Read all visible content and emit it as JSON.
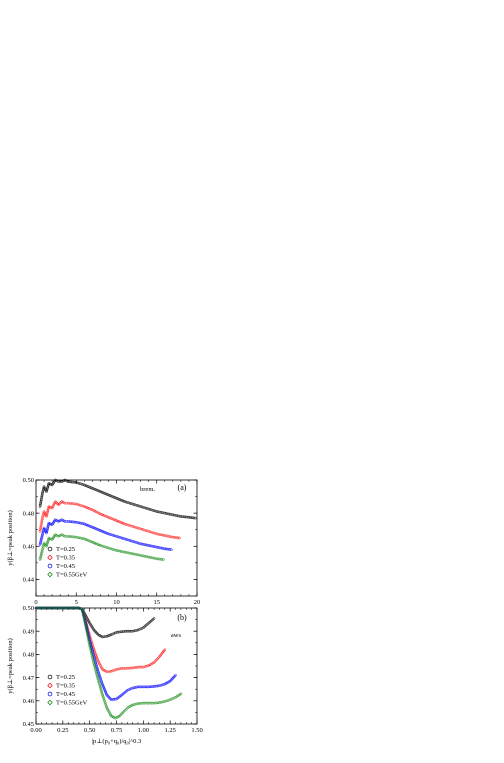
{
  "chart_data": [
    {
      "type": "scatter",
      "panel_label": "(a)",
      "annotation": "brem.",
      "xlabel": "",
      "ylabel": "y(β⊥=peak position)",
      "xlim": [
        0,
        20
      ],
      "ylim": [
        0.43,
        0.5
      ],
      "xticks": [
        "0",
        "5",
        "10",
        "15",
        "20"
      ],
      "yticks": [
        "0.44",
        "0.46",
        "0.48",
        "0.50"
      ],
      "legend_position": "bottom-left",
      "series": [
        {
          "name": "T=0.25",
          "color": "#000000",
          "marker": "circle",
          "points": [
            [
              0.5,
              0.484
            ],
            [
              0.8,
              0.492
            ],
            [
              1.0,
              0.496
            ],
            [
              1.3,
              0.493
            ],
            [
              1.6,
              0.498
            ],
            [
              2.0,
              0.497
            ],
            [
              2.4,
              0.5
            ],
            [
              2.8,
              0.499
            ],
            [
              3.2,
              0.499
            ],
            [
              3.6,
              0.5
            ],
            [
              4.0,
              0.499
            ],
            [
              5,
              0.4985
            ],
            [
              6,
              0.497
            ],
            [
              7,
              0.495
            ],
            [
              8,
              0.493
            ],
            [
              9,
              0.491
            ],
            [
              10,
              0.489
            ],
            [
              11,
              0.487
            ],
            [
              12,
              0.4855
            ],
            [
              13,
              0.484
            ],
            [
              14,
              0.4825
            ],
            [
              15,
              0.481
            ],
            [
              16,
              0.48
            ],
            [
              17,
              0.479
            ],
            [
              18,
              0.478
            ],
            [
              19,
              0.4775
            ],
            [
              19.8,
              0.477
            ]
          ]
        },
        {
          "name": "T=0.35",
          "color": "#ff0000",
          "marker": "diamond",
          "points": [
            [
              0.5,
              0.469
            ],
            [
              0.8,
              0.477
            ],
            [
              1.0,
              0.481
            ],
            [
              1.3,
              0.478
            ],
            [
              1.6,
              0.484
            ],
            [
              2.0,
              0.483
            ],
            [
              2.4,
              0.487
            ],
            [
              2.8,
              0.485
            ],
            [
              3.2,
              0.487
            ],
            [
              3.6,
              0.486
            ],
            [
              4.0,
              0.486
            ],
            [
              5,
              0.4855
            ],
            [
              6,
              0.484
            ],
            [
              7,
              0.482
            ],
            [
              8,
              0.4795
            ],
            [
              9,
              0.4775
            ],
            [
              10,
              0.4755
            ],
            [
              11,
              0.4735
            ],
            [
              12,
              0.472
            ],
            [
              13,
              0.4705
            ],
            [
              14,
              0.469
            ],
            [
              15,
              0.4675
            ],
            [
              16,
              0.4665
            ],
            [
              17,
              0.4655
            ],
            [
              17.8,
              0.465
            ]
          ]
        },
        {
          "name": "T=0.45",
          "color": "#0000ff",
          "marker": "circle",
          "points": [
            [
              0.5,
              0.461
            ],
            [
              0.8,
              0.467
            ],
            [
              1.0,
              0.471
            ],
            [
              1.3,
              0.468
            ],
            [
              1.6,
              0.474
            ],
            [
              2.0,
              0.473
            ],
            [
              2.4,
              0.476
            ],
            [
              2.8,
              0.475
            ],
            [
              3.2,
              0.476
            ],
            [
              3.6,
              0.475
            ],
            [
              4.0,
              0.475
            ],
            [
              5,
              0.4745
            ],
            [
              6,
              0.4735
            ],
            [
              7,
              0.4715
            ],
            [
              8,
              0.4695
            ],
            [
              9,
              0.4675
            ],
            [
              10,
              0.466
            ],
            [
              11,
              0.4645
            ],
            [
              12,
              0.463
            ],
            [
              13,
              0.4615
            ],
            [
              14,
              0.4605
            ],
            [
              15,
              0.4595
            ],
            [
              16,
              0.4585
            ],
            [
              16.8,
              0.458
            ]
          ]
        },
        {
          "name": "T=0.55GeV",
          "color": "#008000",
          "marker": "diamond",
          "points": [
            [
              0.5,
              0.452
            ],
            [
              0.8,
              0.458
            ],
            [
              1.0,
              0.462
            ],
            [
              1.3,
              0.46
            ],
            [
              1.6,
              0.465
            ],
            [
              2.0,
              0.464
            ],
            [
              2.4,
              0.467
            ],
            [
              2.8,
              0.466
            ],
            [
              3.2,
              0.467
            ],
            [
              3.6,
              0.466
            ],
            [
              4.0,
              0.466
            ],
            [
              5,
              0.4655
            ],
            [
              6,
              0.4645
            ],
            [
              7,
              0.4625
            ],
            [
              8,
              0.4605
            ],
            [
              9,
              0.459
            ],
            [
              10,
              0.4575
            ],
            [
              11,
              0.4565
            ],
            [
              12,
              0.4555
            ],
            [
              13,
              0.4545
            ],
            [
              14,
              0.4535
            ],
            [
              15,
              0.4525
            ],
            [
              15.8,
              0.452
            ]
          ]
        }
      ]
    },
    {
      "type": "scatter",
      "panel_label": "(b)",
      "annotation": "aws",
      "xlabel": "|p⊥(p₀+q₀)/q₀|^0.3",
      "ylabel": "y(β⊥=peak position)",
      "xlim": [
        0,
        1.5
      ],
      "ylim": [
        0.45,
        0.5
      ],
      "xticks": [
        "0.00",
        "0.25",
        "0.50",
        "0.75",
        "1.00",
        "1.25",
        "1.50"
      ],
      "yticks": [
        "0.45",
        "0.46",
        "0.47",
        "0.48",
        "0.49",
        "0.50"
      ],
      "legend_position": "bottom-left",
      "series": [
        {
          "name": "T=0.25",
          "color": "#000000",
          "marker": "circle",
          "points": [
            [
              0.0,
              0.5
            ],
            [
              0.2,
              0.5
            ],
            [
              0.4,
              0.5
            ],
            [
              0.43,
              0.4995
            ],
            [
              0.46,
              0.497
            ],
            [
              0.5,
              0.4935
            ],
            [
              0.54,
              0.4905
            ],
            [
              0.58,
              0.4885
            ],
            [
              0.62,
              0.4875
            ],
            [
              0.66,
              0.4878
            ],
            [
              0.7,
              0.4885
            ],
            [
              0.75,
              0.4895
            ],
            [
              0.8,
              0.4898
            ],
            [
              0.85,
              0.49
            ],
            [
              0.9,
              0.49
            ],
            [
              0.95,
              0.4905
            ],
            [
              1.0,
              0.4915
            ],
            [
              1.05,
              0.4935
            ],
            [
              1.1,
              0.4955
            ]
          ]
        },
        {
          "name": "T=0.35",
          "color": "#ff0000",
          "marker": "diamond",
          "points": [
            [
              0.0,
              0.5
            ],
            [
              0.2,
              0.5
            ],
            [
              0.4,
              0.5
            ],
            [
              0.43,
              0.4995
            ],
            [
              0.46,
              0.495
            ],
            [
              0.5,
              0.488
            ],
            [
              0.54,
              0.482
            ],
            [
              0.58,
              0.477
            ],
            [
              0.62,
              0.4735
            ],
            [
              0.66,
              0.4725
            ],
            [
              0.7,
              0.4727
            ],
            [
              0.75,
              0.4735
            ],
            [
              0.8,
              0.474
            ],
            [
              0.85,
              0.474
            ],
            [
              0.9,
              0.4742
            ],
            [
              0.95,
              0.4745
            ],
            [
              1.0,
              0.4745
            ],
            [
              1.05,
              0.4752
            ],
            [
              1.1,
              0.4765
            ],
            [
              1.15,
              0.479
            ],
            [
              1.2,
              0.482
            ]
          ]
        },
        {
          "name": "T=0.45",
          "color": "#0000ff",
          "marker": "circle",
          "points": [
            [
              0.0,
              0.5
            ],
            [
              0.2,
              0.5
            ],
            [
              0.4,
              0.5
            ],
            [
              0.43,
              0.4995
            ],
            [
              0.46,
              0.494
            ],
            [
              0.5,
              0.486
            ],
            [
              0.54,
              0.479
            ],
            [
              0.58,
              0.4725
            ],
            [
              0.62,
              0.467
            ],
            [
              0.66,
              0.4625
            ],
            [
              0.7,
              0.4605
            ],
            [
              0.75,
              0.4608
            ],
            [
              0.8,
              0.4625
            ],
            [
              0.85,
              0.4645
            ],
            [
              0.9,
              0.4655
            ],
            [
              0.95,
              0.466
            ],
            [
              1.0,
              0.466
            ],
            [
              1.05,
              0.466
            ],
            [
              1.1,
              0.4662
            ],
            [
              1.15,
              0.4665
            ],
            [
              1.2,
              0.4672
            ],
            [
              1.25,
              0.4685
            ],
            [
              1.3,
              0.471
            ]
          ]
        },
        {
          "name": "T=0.55GeV",
          "color": "#008000",
          "marker": "diamond",
          "points": [
            [
              0.0,
              0.5
            ],
            [
              0.2,
              0.5
            ],
            [
              0.4,
              0.5
            ],
            [
              0.43,
              0.4995
            ],
            [
              0.46,
              0.493
            ],
            [
              0.5,
              0.484
            ],
            [
              0.54,
              0.476
            ],
            [
              0.58,
              0.469
            ],
            [
              0.62,
              0.4625
            ],
            [
              0.66,
              0.457
            ],
            [
              0.7,
              0.4535
            ],
            [
              0.74,
              0.4525
            ],
            [
              0.78,
              0.4535
            ],
            [
              0.82,
              0.4555
            ],
            [
              0.86,
              0.4572
            ],
            [
              0.9,
              0.4582
            ],
            [
              0.95,
              0.4588
            ],
            [
              1.0,
              0.459
            ],
            [
              1.05,
              0.459
            ],
            [
              1.1,
              0.459
            ],
            [
              1.15,
              0.4592
            ],
            [
              1.2,
              0.4597
            ],
            [
              1.25,
              0.4605
            ],
            [
              1.3,
              0.4615
            ],
            [
              1.35,
              0.463
            ]
          ]
        }
      ]
    }
  ]
}
